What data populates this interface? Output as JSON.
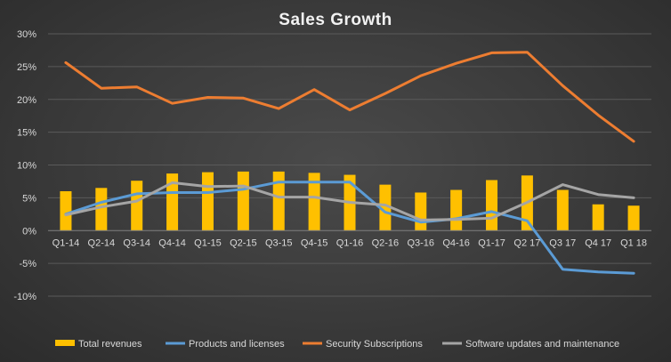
{
  "chart_data": {
    "type": "bar",
    "title": "Sales Growth",
    "categories": [
      "Q1-14",
      "Q2-14",
      "Q3-14",
      "Q4-14",
      "Q1-15",
      "Q2-15",
      "Q3-15",
      "Q4-15",
      "Q1-16",
      "Q2-16",
      "Q3-16",
      "Q4-16",
      "Q1-17",
      "Q2 17",
      "Q3 17",
      "Q4 17",
      "Q1 18"
    ],
    "ylim": [
      -10,
      30
    ],
    "yticks": [
      "-10%",
      "-5%",
      "0%",
      "5%",
      "10%",
      "15%",
      "20%",
      "25%",
      "30%"
    ],
    "ytick_values": [
      -10,
      -5,
      0,
      5,
      10,
      15,
      20,
      25,
      30
    ],
    "grid": true,
    "legend_position": "bottom",
    "series": [
      {
        "name": "Total revenues",
        "type": "bar",
        "color": "#FFC000",
        "values": [
          6.0,
          6.5,
          7.6,
          8.7,
          8.9,
          9.0,
          9.0,
          8.8,
          8.5,
          7.0,
          5.8,
          6.2,
          7.7,
          8.4,
          6.2,
          4.0,
          3.8
        ]
      },
      {
        "name": "Products and licenses",
        "type": "line",
        "color": "#5B9BD5",
        "values": [
          2.5,
          4.3,
          5.6,
          5.8,
          5.8,
          6.3,
          7.4,
          7.4,
          7.4,
          2.8,
          1.3,
          1.8,
          2.9,
          1.5,
          -5.9,
          -6.3,
          -6.5
        ]
      },
      {
        "name": "Security Subscriptions",
        "type": "line",
        "color": "#ED7D31",
        "values": [
          25.6,
          21.7,
          21.9,
          19.4,
          20.3,
          20.2,
          18.6,
          21.5,
          18.4,
          20.9,
          23.6,
          25.5,
          27.1,
          27.2,
          22.1,
          17.6,
          13.6
        ]
      },
      {
        "name": "Software updates and maintenance",
        "type": "line",
        "color": "#A5A5A5",
        "values": [
          2.4,
          3.6,
          4.5,
          7.3,
          6.7,
          6.8,
          5.1,
          5.1,
          4.3,
          3.9,
          1.6,
          1.7,
          1.9,
          4.3,
          7.0,
          5.5,
          5.0
        ]
      }
    ]
  }
}
